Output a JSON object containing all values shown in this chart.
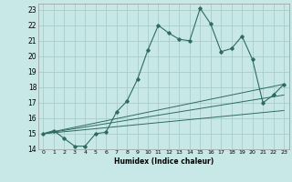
{
  "bg_color": "#c8e8e8",
  "grid_color": "#a8cccc",
  "line_color": "#2e6b60",
  "xlabel": "Humidex (Indice chaleur)",
  "xlim": [
    -0.5,
    23.5
  ],
  "ylim": [
    14,
    23.4
  ],
  "yticks": [
    14,
    15,
    16,
    17,
    18,
    19,
    20,
    21,
    22,
    23
  ],
  "xticks": [
    0,
    1,
    2,
    3,
    4,
    5,
    6,
    7,
    8,
    9,
    10,
    11,
    12,
    13,
    14,
    15,
    16,
    17,
    18,
    19,
    20,
    21,
    22,
    23
  ],
  "series1_x": [
    0,
    1,
    2,
    3,
    4,
    5,
    6,
    7,
    8,
    9,
    10,
    11,
    12,
    13,
    14,
    15,
    16,
    17,
    18,
    19,
    20,
    21,
    22,
    23
  ],
  "series1_y": [
    15.0,
    15.2,
    14.7,
    14.2,
    14.2,
    15.0,
    15.1,
    16.4,
    17.1,
    18.5,
    20.4,
    22.0,
    21.5,
    21.1,
    21.0,
    23.1,
    22.1,
    20.3,
    20.5,
    21.3,
    19.8,
    17.0,
    17.5,
    18.2
  ],
  "series2_x": [
    0,
    23
  ],
  "series2_y": [
    15.0,
    18.2
  ],
  "series3_x": [
    0,
    23
  ],
  "series3_y": [
    15.0,
    17.5
  ],
  "series4_x": [
    0,
    23
  ],
  "series4_y": [
    15.0,
    16.5
  ]
}
